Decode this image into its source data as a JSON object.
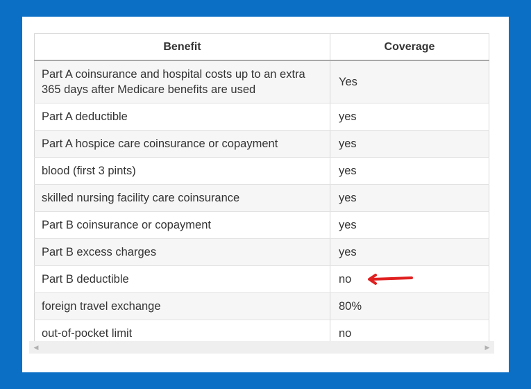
{
  "table": {
    "headers": {
      "benefit": "Benefit",
      "coverage": "Coverage"
    },
    "rows": [
      {
        "benefit": "Part A coinsurance and hospital costs up to an extra 365 days after Medicare benefits are used",
        "coverage": "Yes"
      },
      {
        "benefit": "Part A deductible",
        "coverage": "yes"
      },
      {
        "benefit": "Part A hospice care coinsurance or copayment",
        "coverage": "yes"
      },
      {
        "benefit": "blood (first 3 pints)",
        "coverage": "yes"
      },
      {
        "benefit": "skilled nursing facility care coinsurance",
        "coverage": "yes"
      },
      {
        "benefit": "Part B coinsurance or copayment",
        "coverage": "yes"
      },
      {
        "benefit": "Part B excess charges",
        "coverage": "yes"
      },
      {
        "benefit": "Part B deductible",
        "coverage": "no"
      },
      {
        "benefit": "foreign travel exchange",
        "coverage": "80%"
      },
      {
        "benefit": "out-of-pocket limit",
        "coverage": "no"
      }
    ]
  },
  "annotation": {
    "arrow_color": "#e02020",
    "icon": "left-arrow-icon"
  },
  "colors": {
    "background": "#0b6fc6",
    "card": "#ffffff"
  }
}
